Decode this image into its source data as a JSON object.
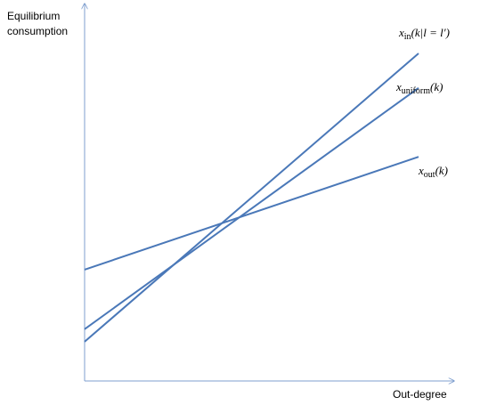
{
  "chart_data": {
    "type": "line",
    "title": "",
    "ylabel": [
      "Equilibrium",
      "consumption"
    ],
    "xlabel": "Out-degree",
    "xlim": [
      0,
      100
    ],
    "ylim": [
      0,
      100
    ],
    "grid": false,
    "legend": "none",
    "colors": {
      "series": "#4a78b8",
      "axis": "#7f9fcf"
    },
    "series": [
      {
        "name": "x_in(k|l = l')",
        "label_main": "x",
        "label_sub": "in",
        "label_tail": "(k|l = l′)",
        "x": [
          0,
          100
        ],
        "y": [
          6,
          98
        ]
      },
      {
        "name": "x_uniform(k)",
        "label_main": "x",
        "label_sub": "uniform",
        "label_tail": "(k)",
        "x": [
          0,
          100
        ],
        "y": [
          10,
          87
        ]
      },
      {
        "name": "x_out(k)",
        "label_main": "x",
        "label_sub": "out",
        "label_tail": "(k)",
        "x": [
          0,
          100
        ],
        "y": [
          29,
          65
        ]
      }
    ]
  }
}
